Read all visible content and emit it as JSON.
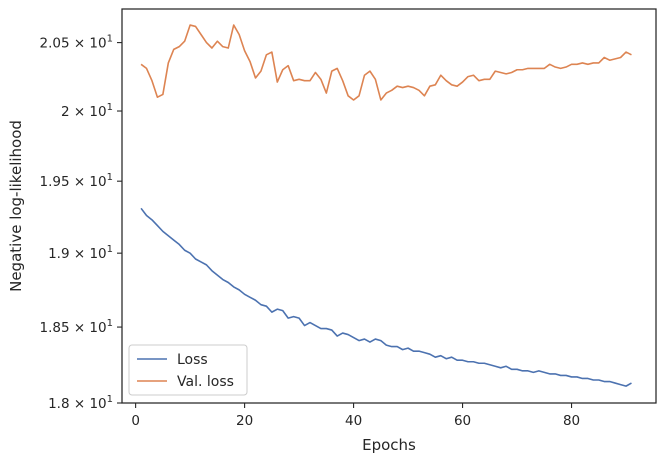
{
  "chart_data": {
    "type": "line",
    "title": "",
    "xlabel": "Epochs",
    "ylabel": "Negative log-likelihood",
    "xlim": [
      -2.5,
      95.5
    ],
    "ylim": [
      18.0,
      20.75
    ],
    "y_scale": "log",
    "grid": false,
    "legend_position": "lower-left",
    "x_ticks": [
      0,
      20,
      40,
      60,
      80
    ],
    "x_tick_labels": [
      "0",
      "20",
      "40",
      "60",
      "80"
    ],
    "y_ticks": [
      {
        "value": 18.0,
        "mantissa": "1.8",
        "base": "10",
        "exponent": "1"
      },
      {
        "value": 18.5,
        "mantissa": "1.85",
        "base": "10",
        "exponent": "1"
      },
      {
        "value": 19.0,
        "mantissa": "1.9",
        "base": "10",
        "exponent": "1"
      },
      {
        "value": 19.5,
        "mantissa": "1.95",
        "base": "10",
        "exponent": "1"
      },
      {
        "value": 20.0,
        "mantissa": "2",
        "base": "10",
        "exponent": "1"
      },
      {
        "value": 20.5,
        "mantissa": "2.05",
        "base": "10",
        "exponent": "1"
      }
    ],
    "series": [
      {
        "name": "Loss",
        "color": "#4c72b0",
        "x": [
          1,
          2,
          3,
          4,
          5,
          6,
          7,
          8,
          9,
          10,
          11,
          12,
          13,
          14,
          15,
          16,
          17,
          18,
          19,
          20,
          21,
          22,
          23,
          24,
          25,
          26,
          27,
          28,
          29,
          30,
          31,
          32,
          33,
          34,
          35,
          36,
          37,
          38,
          39,
          40,
          41,
          42,
          43,
          44,
          45,
          46,
          47,
          48,
          49,
          50,
          51,
          52,
          53,
          54,
          55,
          56,
          57,
          58,
          59,
          60,
          61,
          62,
          63,
          64,
          65,
          66,
          67,
          68,
          69,
          70,
          71,
          72,
          73,
          74,
          75,
          76,
          77,
          78,
          79,
          80,
          81,
          82,
          83,
          84,
          85,
          86,
          87,
          88,
          89,
          90,
          91
        ],
        "values": [
          19.31,
          19.26,
          19.23,
          19.19,
          19.15,
          19.12,
          19.09,
          19.06,
          19.02,
          19.0,
          18.96,
          18.94,
          18.92,
          18.88,
          18.85,
          18.82,
          18.8,
          18.77,
          18.75,
          18.72,
          18.7,
          18.68,
          18.65,
          18.64,
          18.6,
          18.62,
          18.61,
          18.56,
          18.57,
          18.56,
          18.51,
          18.53,
          18.51,
          18.49,
          18.49,
          18.48,
          18.44,
          18.46,
          18.45,
          18.43,
          18.41,
          18.42,
          18.4,
          18.42,
          18.41,
          18.38,
          18.37,
          18.37,
          18.35,
          18.36,
          18.34,
          18.34,
          18.33,
          18.32,
          18.3,
          18.31,
          18.29,
          18.3,
          18.28,
          18.28,
          18.27,
          18.27,
          18.26,
          18.26,
          18.25,
          18.24,
          18.23,
          18.24,
          18.22,
          18.22,
          18.21,
          18.21,
          18.2,
          18.21,
          18.2,
          18.19,
          18.19,
          18.18,
          18.18,
          18.17,
          18.17,
          18.16,
          18.16,
          18.15,
          18.15,
          18.14,
          18.14,
          18.13,
          18.12,
          18.11,
          18.13
        ]
      },
      {
        "name": "Val. loss",
        "color": "#dd8452",
        "x": [
          1,
          2,
          3,
          4,
          5,
          6,
          7,
          8,
          9,
          10,
          11,
          12,
          13,
          14,
          15,
          16,
          17,
          18,
          19,
          20,
          21,
          22,
          23,
          24,
          25,
          26,
          27,
          28,
          29,
          30,
          31,
          32,
          33,
          34,
          35,
          36,
          37,
          38,
          39,
          40,
          41,
          42,
          43,
          44,
          45,
          46,
          47,
          48,
          49,
          50,
          51,
          52,
          53,
          54,
          55,
          56,
          57,
          58,
          59,
          60,
          61,
          62,
          63,
          64,
          65,
          66,
          67,
          68,
          69,
          70,
          71,
          72,
          73,
          74,
          75,
          76,
          77,
          78,
          79,
          80,
          81,
          82,
          83,
          84,
          85,
          86,
          87,
          88,
          89,
          90,
          91
        ],
        "values": [
          20.34,
          20.31,
          20.22,
          20.1,
          20.12,
          20.35,
          20.45,
          20.47,
          20.51,
          20.63,
          20.62,
          20.56,
          20.5,
          20.46,
          20.51,
          20.47,
          20.46,
          20.63,
          20.56,
          20.44,
          20.36,
          20.24,
          20.29,
          20.41,
          20.43,
          20.21,
          20.3,
          20.33,
          20.22,
          20.23,
          20.22,
          20.22,
          20.28,
          20.23,
          20.13,
          20.29,
          20.31,
          20.22,
          20.11,
          20.08,
          20.11,
          20.26,
          20.29,
          20.23,
          20.08,
          20.13,
          20.15,
          20.18,
          20.17,
          20.18,
          20.17,
          20.15,
          20.11,
          20.18,
          20.19,
          20.26,
          20.22,
          20.19,
          20.18,
          20.21,
          20.25,
          20.26,
          20.22,
          20.23,
          20.23,
          20.29,
          20.28,
          20.27,
          20.28,
          20.3,
          20.3,
          20.31,
          20.31,
          20.31,
          20.31,
          20.34,
          20.32,
          20.31,
          20.32,
          20.34,
          20.34,
          20.35,
          20.34,
          20.35,
          20.35,
          20.39,
          20.37,
          20.38,
          20.39,
          20.43,
          20.41
        ]
      }
    ]
  }
}
